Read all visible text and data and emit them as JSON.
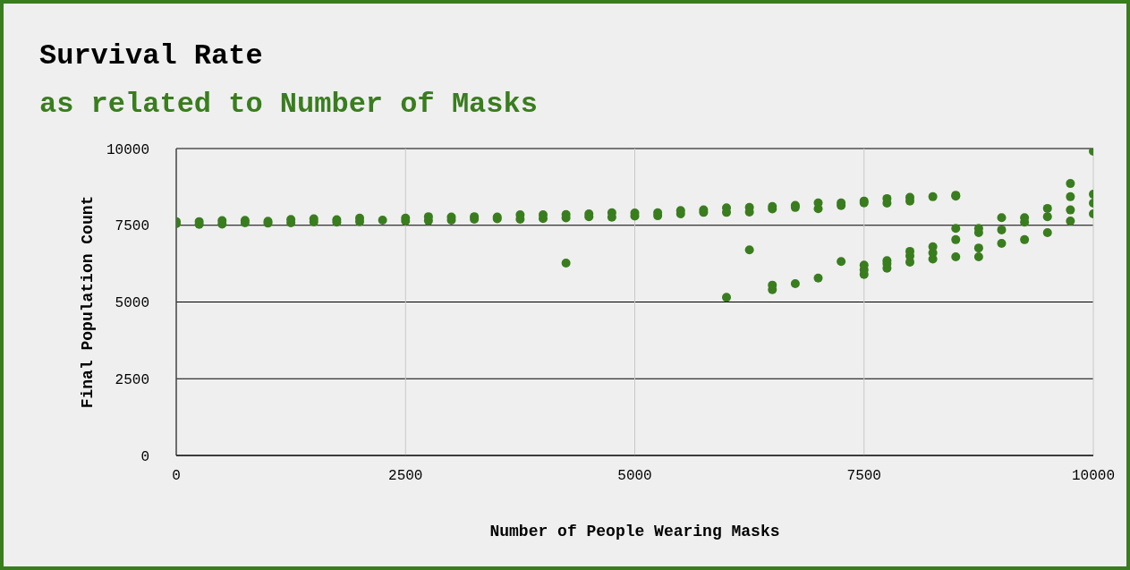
{
  "chart_data": {
    "type": "scatter",
    "title": "Survival Rate",
    "subtitle": "as related to Number of Masks",
    "xlabel": "Number of People Wearing Masks",
    "ylabel": "Final Population Count",
    "xlim": [
      0,
      10000
    ],
    "ylim": [
      0,
      10000
    ],
    "xticks": [
      0,
      2500,
      5000,
      7500,
      10000
    ],
    "yticks": [
      0,
      2500,
      5000,
      7500,
      10000
    ],
    "grid": true,
    "marker": "circle",
    "series": [
      {
        "color": "#3a7d1f",
        "x": [
          0,
          0,
          250,
          250,
          500,
          500,
          750,
          750,
          1000,
          1000,
          1250,
          1250,
          1500,
          1500,
          1750,
          1750,
          2000,
          2000,
          2250,
          2500,
          2500,
          2750,
          2750,
          3000,
          3000,
          3250,
          3250,
          3500,
          3500,
          3750,
          3750,
          4000,
          4000,
          4250,
          4250,
          4500,
          4500,
          4750,
          4750,
          5000,
          5000,
          5250,
          5250,
          5500,
          5500,
          5750,
          5750,
          6000,
          6000,
          6250,
          6250,
          6500,
          6500,
          6750,
          6750,
          7000,
          7000,
          7250,
          7250,
          7500,
          7500,
          7750,
          7750,
          8000,
          8000,
          8250,
          8500,
          4250,
          6000,
          6250,
          6500,
          6500,
          6750,
          7000,
          7250,
          7500,
          7500,
          7500,
          7750,
          7750,
          7750,
          8000,
          8000,
          8000,
          8250,
          8250,
          8250,
          8500,
          8500,
          8500,
          8500,
          8750,
          8750,
          8750,
          8750,
          9000,
          9000,
          9000,
          9250,
          9250,
          9250,
          9500,
          9500,
          9500,
          9750,
          9750,
          9750,
          9750,
          10000,
          10000,
          10000,
          10000
        ],
        "values": [
          7550,
          7620,
          7530,
          7620,
          7540,
          7650,
          7580,
          7660,
          7570,
          7630,
          7580,
          7690,
          7610,
          7710,
          7600,
          7680,
          7620,
          7730,
          7670,
          7640,
          7730,
          7650,
          7780,
          7670,
          7770,
          7700,
          7780,
          7710,
          7770,
          7700,
          7840,
          7720,
          7840,
          7740,
          7850,
          7780,
          7870,
          7760,
          7910,
          7800,
          7900,
          7810,
          7910,
          7870,
          7980,
          7920,
          8000,
          7920,
          8070,
          7930,
          8080,
          8030,
          8110,
          8080,
          8150,
          8040,
          8230,
          8140,
          8230,
          8230,
          8290,
          8220,
          8370,
          8290,
          8410,
          8430,
          8480,
          6270,
          5150,
          6700,
          5400,
          5550,
          5600,
          5780,
          6320,
          5900,
          6050,
          6200,
          6100,
          6250,
          6350,
          6300,
          6500,
          6650,
          6400,
          6600,
          6800,
          6470,
          7030,
          7400,
          8450,
          6470,
          6760,
          7260,
          7400,
          6910,
          7350,
          7750,
          7030,
          7600,
          7750,
          7260,
          7780,
          8050,
          7640,
          8430,
          8000,
          8860,
          7870,
          8220,
          8510,
          9910
        ]
      }
    ]
  }
}
